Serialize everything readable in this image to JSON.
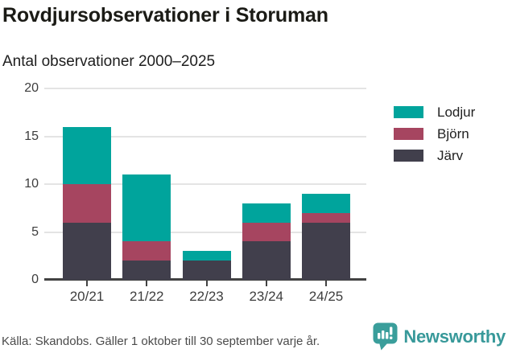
{
  "header": {
    "title": "Rovdjursobservationer i Storuman",
    "subtitle": "Antal observationer 2000–2025"
  },
  "chart_data": {
    "type": "bar",
    "stacked": true,
    "title": "Rovdjursobservationer i Storuman",
    "subtitle": "Antal observationer 2000–2025",
    "categories": [
      "20/21",
      "21/22",
      "22/23",
      "23/24",
      "24/25"
    ],
    "series": [
      {
        "name": "Lodjur",
        "color": "#00a49c",
        "values": [
          6,
          7,
          1,
          2,
          2
        ]
      },
      {
        "name": "Björn",
        "color": "#a64560",
        "values": [
          4,
          2,
          0,
          2,
          1
        ]
      },
      {
        "name": "Järv",
        "color": "#413f4c",
        "values": [
          6,
          2,
          2,
          4,
          6
        ]
      }
    ],
    "stack_order_bottom_to_top": [
      "Järv",
      "Björn",
      "Lodjur"
    ],
    "xlabel": "",
    "ylabel": "",
    "ylim": [
      0,
      20
    ],
    "yticks": [
      0,
      5,
      10,
      15,
      20
    ],
    "grid": true,
    "legend_position": "right"
  },
  "footer": {
    "source": "Källa: Skandobs. Gäller 1 oktober till 30 september varje år.",
    "brand": "Newsworthy",
    "brand_icon": "newsworthy-speech-bubble-bar-chart-icon"
  },
  "colors": {
    "accent_teal": "#00a49c",
    "maroon": "#a64560",
    "dark_slate": "#413f4c",
    "gridline": "#e4e4e4",
    "axis": "#424242",
    "brand_teal": "#38999a"
  }
}
